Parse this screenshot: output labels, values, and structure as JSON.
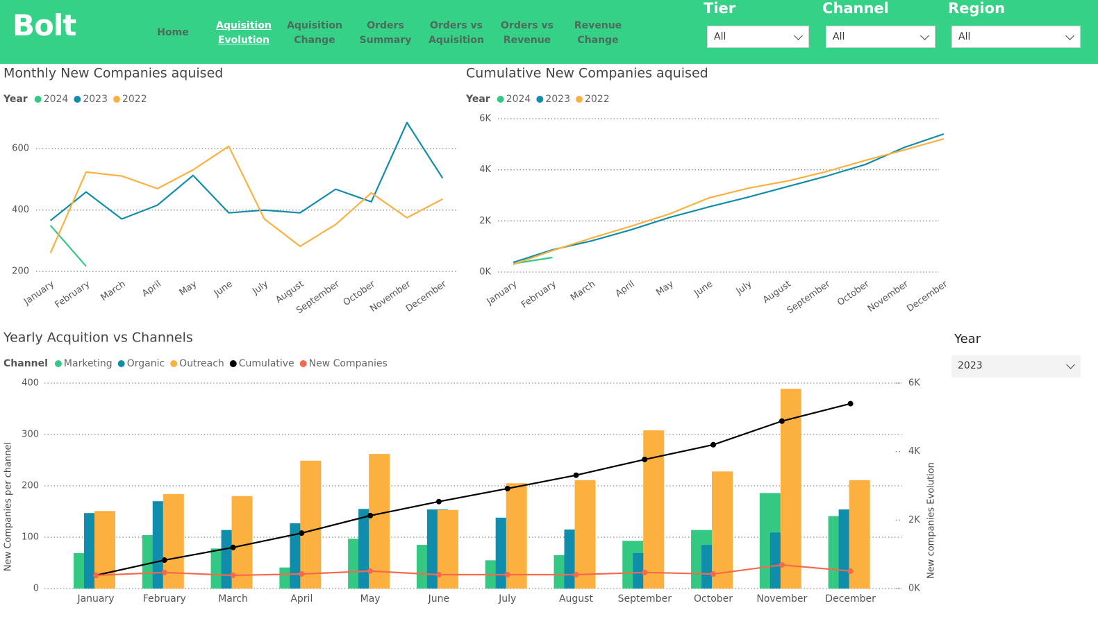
{
  "header": {
    "logo": "Bolt",
    "nav": [
      "Home",
      "Aquisition Evolution",
      "Aquisition Change",
      "Orders Summary",
      "Orders vs Aquisition",
      "Orders vs Revenue",
      "Revenue Change"
    ],
    "active": 1
  },
  "filters": [
    {
      "label": "Tier",
      "value": "All"
    },
    {
      "label": "Channel",
      "value": "All"
    },
    {
      "label": "Region",
      "value": "All"
    }
  ],
  "year_slicer": {
    "label": "Year",
    "value": "2023"
  },
  "chart_data": [
    {
      "type": "line",
      "title": "Monthly New Companies aquised",
      "legend_title": "Year",
      "categories": [
        "January",
        "February",
        "March",
        "April",
        "May",
        "June",
        "July",
        "August",
        "September",
        "October",
        "November",
        "December"
      ],
      "series": [
        {
          "name": "2024",
          "color": "#35c883",
          "values": [
            350,
            217,
            null,
            null,
            null,
            null,
            null,
            null,
            null,
            null,
            null,
            null
          ]
        },
        {
          "name": "2023",
          "color": "#118dac",
          "values": [
            366,
            459,
            371,
            416,
            513,
            391,
            400,
            391,
            468,
            427,
            685,
            504
          ]
        },
        {
          "name": "2022",
          "color": "#fbb040",
          "values": [
            260,
            524,
            511,
            470,
            531,
            608,
            371,
            282,
            353,
            456,
            375,
            436
          ]
        }
      ],
      "ylim": [
        180,
        700
      ],
      "yticks": [
        200,
        400,
        600
      ],
      "grid": true
    },
    {
      "type": "line",
      "title": "Cumulative New Companies aquised",
      "legend_title": "Year",
      "categories": [
        "January",
        "February",
        "March",
        "April",
        "May",
        "June",
        "July",
        "August",
        "September",
        "October",
        "November",
        "December"
      ],
      "series": [
        {
          "name": "2024",
          "color": "#35c883",
          "values": [
            330,
            570,
            null,
            null,
            null,
            null,
            null,
            null,
            null,
            null,
            null,
            null
          ]
        },
        {
          "name": "2023",
          "color": "#118dac",
          "values": [
            380,
            870,
            1220,
            1650,
            2140,
            2550,
            2930,
            3340,
            3750,
            4210,
            4880,
            5400
          ]
        },
        {
          "name": "2022",
          "color": "#fbb040",
          "values": [
            300,
            840,
            1330,
            1790,
            2280,
            2900,
            3280,
            3560,
            3930,
            4370,
            4780,
            5210
          ]
        }
      ],
      "ylim": [
        0,
        6000
      ],
      "yticks": [
        {
          "value": 0,
          "label": "0K"
        },
        {
          "value": 2000,
          "label": "2K"
        },
        {
          "value": 4000,
          "label": "4K"
        },
        {
          "value": 6000,
          "label": "6K"
        }
      ],
      "grid": true
    },
    {
      "type": "combo",
      "title": "Yearly Acquition vs Channels",
      "legend_title": "Channel",
      "ylabel": "New Companies per channel",
      "y2label": "New companies Evolution",
      "categories": [
        "January",
        "February",
        "March",
        "April",
        "May",
        "June",
        "July",
        "August",
        "September",
        "October",
        "November",
        "December"
      ],
      "series": [
        {
          "name": "Marketing",
          "color": "#35c883",
          "kind": "bar",
          "values": [
            69,
            104,
            78,
            41,
            97,
            85,
            55,
            65,
            93,
            114,
            186,
            141
          ]
        },
        {
          "name": "Organic",
          "color": "#118dac",
          "kind": "bar",
          "values": [
            147,
            170,
            114,
            127,
            155,
            154,
            138,
            115,
            69,
            85,
            109,
            154
          ]
        },
        {
          "name": "Outreach",
          "color": "#fbb040",
          "kind": "bar",
          "values": [
            151,
            184,
            180,
            249,
            262,
            153,
            205,
            211,
            308,
            228,
            389,
            211
          ]
        },
        {
          "name": "Cumulative",
          "color": "#000000",
          "kind": "line",
          "axis": "y2",
          "values": [
            385,
            830,
            1200,
            1620,
            2130,
            2540,
            2920,
            3310,
            3770,
            4200,
            4890,
            5400
          ]
        },
        {
          "name": "New Companies",
          "color": "#f56a4f",
          "kind": "line",
          "axis": "y2",
          "values": [
            385,
            470,
            385,
            425,
            510,
            405,
            405,
            405,
            470,
            425,
            690,
            510
          ]
        }
      ],
      "ylim": [
        0,
        400
      ],
      "yticks": [
        0,
        100,
        200,
        300,
        400
      ],
      "y2lim": [
        0,
        6000
      ],
      "y2ticks": [
        {
          "value": 0,
          "label": "0K"
        },
        {
          "value": 2000,
          "label": "2K"
        },
        {
          "value": 4000,
          "label": "4K"
        },
        {
          "value": 6000,
          "label": "6K"
        }
      ],
      "grid": true
    }
  ]
}
